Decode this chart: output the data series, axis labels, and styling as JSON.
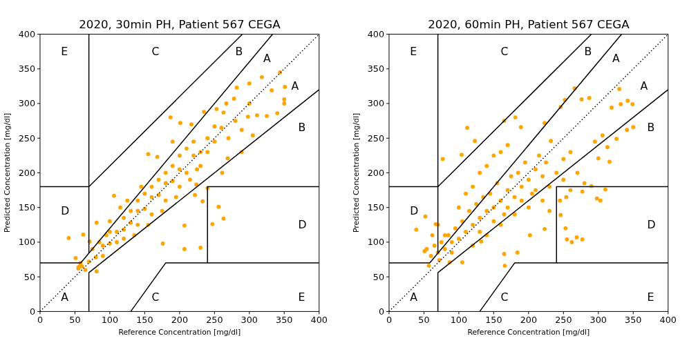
{
  "chart_data": [
    {
      "type": "scatter",
      "title": "2020, 30min PH, Patient 567 CEGA",
      "xlabel": "Reference Concentration [mg/dl]",
      "ylabel": "Predicted Concentration [mg/dl]",
      "xlim": [
        0,
        400
      ],
      "ylim": [
        0,
        400
      ],
      "xticks": [
        0,
        50,
        100,
        150,
        200,
        250,
        300,
        350,
        400
      ],
      "yticks": [
        0,
        50,
        100,
        150,
        200,
        250,
        300,
        350,
        400
      ],
      "series": [
        {
          "marker": "circle",
          "color": "#ffa500",
          "x": [
            41,
            344,
            318,
            300,
            351,
            350,
            350,
            332,
            282,
            278,
            267,
            253,
            235,
            263,
            340,
            325,
            311,
            298,
            187,
            201,
            217,
            250,
            289,
            305,
            289,
            269,
            261,
            263,
            256,
            247,
            233,
            207,
            230,
            176,
            155,
            190,
            168,
            106,
            62,
            81,
            71,
            81,
            51,
            55,
            58,
            240,
            224,
            207,
            222,
            60,
            70,
            80,
            90,
            100,
            110,
            120,
            130,
            140,
            150,
            160,
            170,
            180,
            190,
            200,
            210,
            220,
            230,
            100,
            120,
            140,
            160,
            180,
            120,
            140,
            160,
            180,
            200,
            90,
            110,
            130,
            150,
            170,
            190,
            200,
            210,
            220,
            240,
            250,
            240,
            260,
            270,
            280,
            300,
            230,
            85,
            95,
            75,
            65,
            55,
            58,
            125,
            145,
            135,
            155,
            175,
            195,
            215,
            225,
            100,
            115
          ],
          "values": [
            106,
            345,
            338,
            329,
            324,
            306,
            300,
            319,
            323,
            307,
            300,
            292,
            288,
            287,
            286,
            282,
            283,
            281,
            280,
            272,
            270,
            267,
            262,
            254,
            230,
            221,
            200,
            134,
            151,
            126,
            159,
            90,
            92,
            98,
            227,
            245,
            223,
            167,
            111,
            128,
            101,
            58,
            77,
            64,
            67,
            178,
            183,
            124,
            168,
            65,
            72,
            78,
            95,
            98,
            115,
            118,
            128,
            145,
            148,
            165,
            168,
            185,
            188,
            205,
            200,
            225,
            230,
            115,
            135,
            160,
            180,
            200,
            105,
            125,
            140,
            160,
            180,
            80,
            100,
            145,
            170,
            190,
            210,
            225,
            235,
            245,
            250,
            245,
            230,
            265,
            250,
            275,
            300,
            210,
            100,
            110,
            90,
            60,
            62,
            70,
            160,
            180,
            110,
            125,
            145,
            165,
            190,
            205,
            130,
            150
          ]
        },
        {
          "type": "line",
          "color": "#000000",
          "line_style": "dotted",
          "x": [
            0,
            400
          ],
          "values": [
            0,
            400
          ]
        },
        {
          "type": "line",
          "color": "#000000",
          "x": [
            0,
            58.33,
            333.33
          ],
          "values": [
            70,
            70,
            400
          ]
        },
        {
          "type": "line",
          "color": "#000000",
          "x": [
            70,
            70,
            400
          ],
          "values": [
            0,
            56,
            320
          ]
        },
        {
          "type": "line",
          "color": "#000000",
          "x": [
            70,
            70
          ],
          "values": [
            84,
            400
          ]
        },
        {
          "type": "line",
          "color": "#000000",
          "x": [
            0,
            70,
            290
          ],
          "values": [
            180,
            180,
            400
          ]
        },
        {
          "type": "line",
          "color": "#000000",
          "x": [
            130,
            180,
            400
          ],
          "values": [
            0,
            70,
            70
          ]
        },
        {
          "type": "line",
          "color": "#000000",
          "x": [
            240,
            240,
            400
          ],
          "values": [
            70,
            180,
            180
          ]
        }
      ],
      "annotations": [
        "A",
        "B",
        "B",
        "C",
        "C",
        "D",
        "D",
        "E",
        "E",
        "A",
        "A"
      ]
    },
    {
      "type": "scatter",
      "title": "2020, 60min PH, Patient 567 CEGA",
      "xlabel": "Reference Concentration [mg/dl]",
      "ylabel": "Predicted Concentration [mg/dl]",
      "xlim": [
        0,
        400
      ],
      "ylim": [
        0,
        400
      ],
      "xticks": [
        0,
        50,
        100,
        150,
        200,
        250,
        300,
        350,
        400
      ],
      "yticks": [
        0,
        50,
        100,
        150,
        200,
        250,
        300,
        350,
        400
      ],
      "series": [
        {
          "marker": "circle",
          "color": "#ffa500",
          "x": [
            266,
            112,
            123,
            77,
            104,
            165,
            181,
            189,
            330,
            342,
            349,
            332,
            319,
            287,
            276,
            350,
            341,
            326,
            313,
            306,
            295,
            300,
            316,
            310,
            303,
            298,
            290,
            277,
            269,
            277,
            262,
            255,
            253,
            246,
            254,
            223,
            202,
            166,
            165,
            39,
            52,
            57,
            54,
            51,
            62,
            67,
            72,
            87,
            105,
            132,
            184,
            232,
            223,
            246,
            252,
            60,
            65,
            70,
            75,
            80,
            85,
            90,
            95,
            100,
            105,
            110,
            115,
            120,
            125,
            130,
            135,
            140,
            145,
            150,
            155,
            160,
            165,
            170,
            175,
            180,
            185,
            190,
            195,
            200,
            205,
            210,
            215,
            220,
            225,
            230,
            240,
            250,
            100,
            110,
            120,
            130,
            140,
            150,
            160,
            170,
            120,
            140,
            160,
            180,
            200,
            220,
            230,
            90,
            80,
            70,
            130,
            150,
            170,
            190,
            210,
            250,
            260,
            270,
            280,
            260,
            245
          ],
          "values": [
            322,
            265,
            246,
            220,
            226,
            275,
            280,
            266,
            321,
            304,
            299,
            299,
            294,
            308,
            306,
            266,
            262,
            249,
            237,
            254,
            245,
            221,
            216,
            176,
            160,
            163,
            181,
            173,
            107,
            104,
            100,
            104,
            120,
            139,
            165,
            119,
            110,
            66,
            83,
            118,
            137,
            66,
            90,
            87,
            110,
            126,
            74,
            71,
            71,
            101,
            85,
            246,
            272,
            295,
            305,
            80,
            95,
            85,
            100,
            90,
            110,
            100,
            120,
            105,
            130,
            115,
            145,
            125,
            155,
            135,
            165,
            145,
            170,
            150,
            185,
            160,
            140,
            175,
            195,
            165,
            200,
            180,
            215,
            190,
            170,
            205,
            225,
            195,
            215,
            180,
            200,
            190,
            150,
            170,
            180,
            200,
            210,
            225,
            230,
            240,
            95,
            110,
            125,
            140,
            150,
            160,
            145,
            85,
            110,
            125,
            115,
            130,
            150,
            160,
            175,
            220,
            230,
            200,
            185,
            175,
            160
          ]
        },
        {
          "type": "line",
          "color": "#000000",
          "line_style": "dotted",
          "x": [
            0,
            400
          ],
          "values": [
            0,
            400
          ]
        },
        {
          "type": "line",
          "color": "#000000",
          "x": [
            0,
            58.33,
            333.33
          ],
          "values": [
            70,
            70,
            400
          ]
        },
        {
          "type": "line",
          "color": "#000000",
          "x": [
            70,
            70,
            400
          ],
          "values": [
            0,
            56,
            320
          ]
        },
        {
          "type": "line",
          "color": "#000000",
          "x": [
            70,
            70
          ],
          "values": [
            84,
            400
          ]
        },
        {
          "type": "line",
          "color": "#000000",
          "x": [
            0,
            70,
            290
          ],
          "values": [
            180,
            180,
            400
          ]
        },
        {
          "type": "line",
          "color": "#000000",
          "x": [
            130,
            180,
            400
          ],
          "values": [
            0,
            70,
            70
          ]
        },
        {
          "type": "line",
          "color": "#000000",
          "x": [
            240,
            240,
            400
          ],
          "values": [
            70,
            180,
            180
          ]
        }
      ],
      "annotations": [
        "A",
        "B",
        "B",
        "C",
        "C",
        "D",
        "D",
        "E",
        "E",
        "A",
        "A"
      ]
    }
  ]
}
